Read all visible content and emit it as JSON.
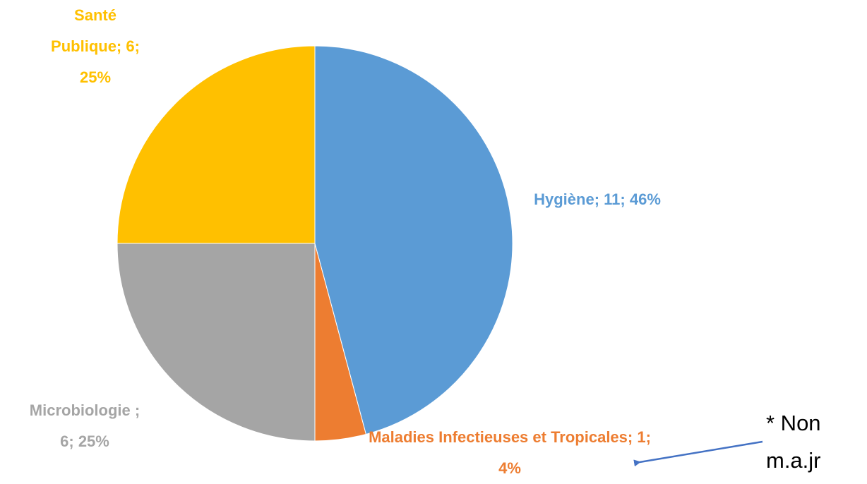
{
  "chart_data": {
    "type": "pie",
    "categories": [
      "Hygiène",
      "Maladies Infectieuses et Tropicales",
      "Microbiologie",
      "Santé Publique"
    ],
    "values": [
      11,
      1,
      6,
      6
    ],
    "value_labels": [
      "Hygiène; 11; 46%",
      "Maladies Infectieuses et Tropicales; 1; 4%",
      "Microbiologie ; 6; 25%",
      "Santé Publique; 6; 25%"
    ],
    "colors": [
      "#5b9bd5",
      "#ed7d31",
      "#a5a5a5",
      "#ffc000"
    ],
    "annotation": "* Non m.a.jr"
  }
}
